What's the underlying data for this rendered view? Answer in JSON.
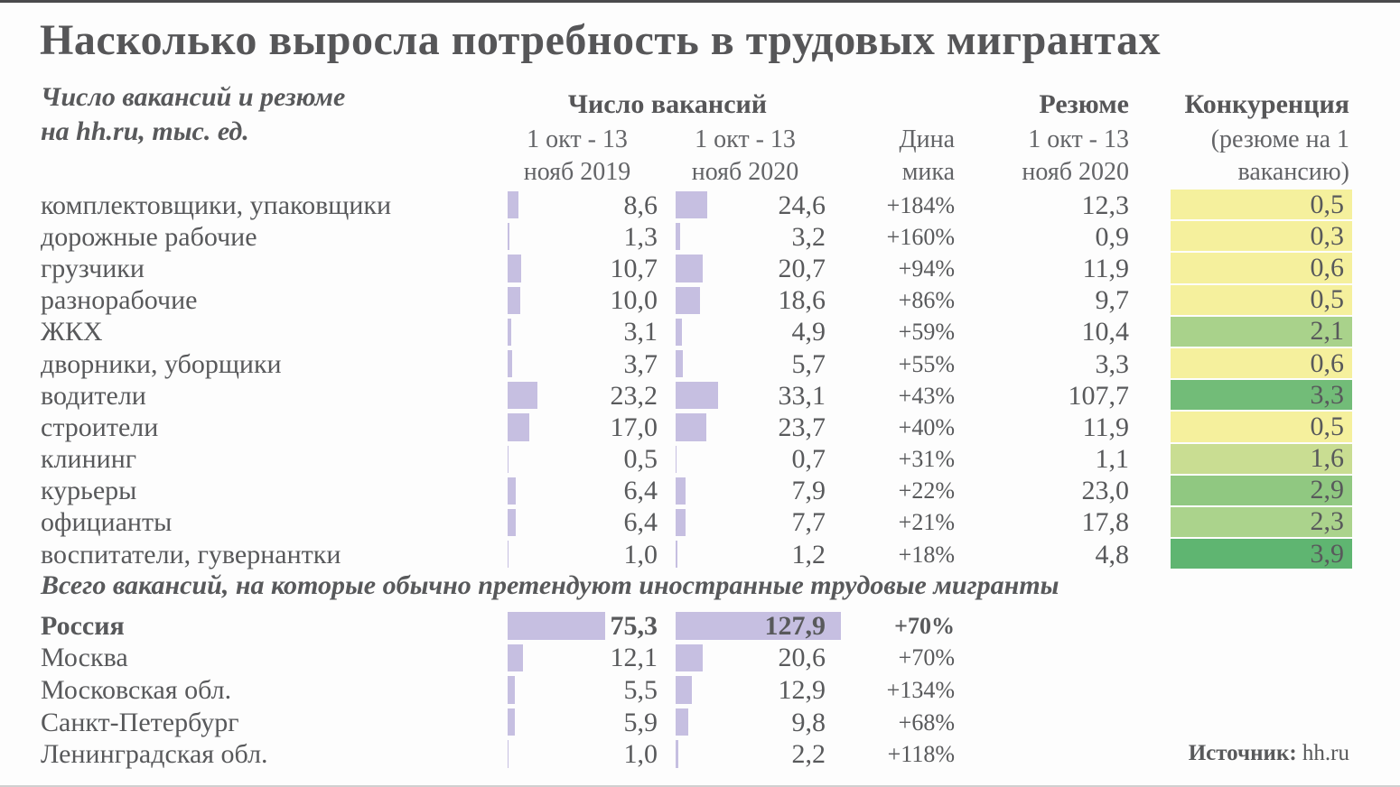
{
  "title": "Насколько выросла потребность в трудовых мигрантах",
  "subtitle": {
    "line1": "Число вакансий и резюме",
    "line2": "на hh.ru, тыс. ед."
  },
  "header": {
    "vacancies_group": "Число вакансий",
    "resume_group": "Резюме",
    "competition_group": "Конкуренция",
    "col_2019_l1": "1 окт - 13",
    "col_2019_l2": "нояб 2019",
    "col_2020_l1": "1 окт - 13",
    "col_2020_l2": "нояб 2020",
    "dynamics_l1": "Дина",
    "dynamics_l2": "мика",
    "resume_col_l1": "1 окт - 13",
    "resume_col_l2": "нояб 2020",
    "competition_sub_l1": "(резюме на 1",
    "competition_sub_l2": "вакансию)"
  },
  "colors": {
    "bar": "#c6bfe1",
    "yellow": "#f5f09d",
    "green_light": "#c9dd92",
    "green_mid": "#a9d28b",
    "green_strong": "#5fb571",
    "text": "#58595b"
  },
  "rows": [
    {
      "label": "комплектовщики, упаковщики",
      "v2019": "8,6",
      "v2020": "24,6",
      "dyn": "+184%",
      "resume": "12,3",
      "comp": "0,5",
      "comp_color": "#f5f09d"
    },
    {
      "label": "дорожные рабочие",
      "v2019": "1,3",
      "v2020": "3,2",
      "dyn": "+160%",
      "resume": "0,9",
      "comp": "0,3",
      "comp_color": "#f5f09d"
    },
    {
      "label": "грузчики",
      "v2019": "10,7",
      "v2020": "20,7",
      "dyn": "+94%",
      "resume": "11,9",
      "comp": "0,6",
      "comp_color": "#f5f09d"
    },
    {
      "label": "разнорабочие",
      "v2019": "10,0",
      "v2020": "18,6",
      "dyn": "+86%",
      "resume": "9,7",
      "comp": "0,5",
      "comp_color": "#f5f09d"
    },
    {
      "label": "ЖКХ",
      "v2019": "3,1",
      "v2020": "4,9",
      "dyn": "+59%",
      "resume": "10,4",
      "comp": "2,1",
      "comp_color": "#a9d28b"
    },
    {
      "label": "дворники, уборщики",
      "v2019": "3,7",
      "v2020": "5,7",
      "dyn": "+55%",
      "resume": "3,3",
      "comp": "0,6",
      "comp_color": "#f5f09d"
    },
    {
      "label": "водители",
      "v2019": "23,2",
      "v2020": "33,1",
      "dyn": "+43%",
      "resume": "107,7",
      "comp": "3,3",
      "comp_color": "#72bc78"
    },
    {
      "label": "строители",
      "v2019": "17,0",
      "v2020": "23,7",
      "dyn": "+40%",
      "resume": "11,9",
      "comp": "0,5",
      "comp_color": "#f5f09d"
    },
    {
      "label": "клининг",
      "v2019": "0,5",
      "v2020": "0,7",
      "dyn": "+31%",
      "resume": "1,1",
      "comp": "1,6",
      "comp_color": "#c9dd92"
    },
    {
      "label": "курьеры",
      "v2019": "6,4",
      "v2020": "7,9",
      "dyn": "+22%",
      "resume": "23,0",
      "comp": "2,9",
      "comp_color": "#90c881"
    },
    {
      "label": "официанты",
      "v2019": "6,4",
      "v2020": "7,7",
      "dyn": "+21%",
      "resume": "17,8",
      "comp": "2,3",
      "comp_color": "#abd38c"
    },
    {
      "label": "воспитатели, гувернантки",
      "v2019": "1,0",
      "v2020": "1,2",
      "dyn": "+18%",
      "resume": "4,8",
      "comp": "3,9",
      "comp_color": "#5fb571"
    }
  ],
  "section_title": "Всего вакансий, на которые обычно претендуют иностранные трудовые мигранты",
  "regions": [
    {
      "label": "Россия",
      "v2019": "75,3",
      "v2020": "127,9",
      "dyn": "+70%",
      "emphasis": true
    },
    {
      "label": "Москва",
      "v2019": "12,1",
      "v2020": "20,6",
      "dyn": "+70%"
    },
    {
      "label": "Московская обл.",
      "v2019": "5,5",
      "v2020": "12,9",
      "dyn": "+134%"
    },
    {
      "label": "Санкт-Петербург",
      "v2019": "5,9",
      "v2020": "9,8",
      "dyn": "+68%"
    },
    {
      "label": "Ленинградская обл.",
      "v2019": "1,0",
      "v2020": "2,2",
      "dyn": "+118%"
    }
  ],
  "source": {
    "label": "Источник:",
    "value": " hh.ru"
  },
  "chart_data": {
    "type": "table",
    "title": "Насколько выросла потребность в трудовых мигрантах",
    "subtitle": "Число вакансий и резюме на hh.ru, тыс. ед.",
    "columns": [
      "Число вакансий 1 окт - 13 нояб 2019",
      "Число вакансий 1 окт - 13 нояб 2020",
      "Динамика",
      "Резюме 1 окт - 13 нояб 2020",
      "Конкуренция (резюме на 1 вакансию)"
    ],
    "occupations": [
      {
        "label": "комплектовщики, упаковщики",
        "vacancies_2019": 8.6,
        "vacancies_2020": 24.6,
        "dynamics_pct": 184,
        "resumes_2020": 12.3,
        "competition": 0.5
      },
      {
        "label": "дорожные рабочие",
        "vacancies_2019": 1.3,
        "vacancies_2020": 3.2,
        "dynamics_pct": 160,
        "resumes_2020": 0.9,
        "competition": 0.3
      },
      {
        "label": "грузчики",
        "vacancies_2019": 10.7,
        "vacancies_2020": 20.7,
        "dynamics_pct": 94,
        "resumes_2020": 11.9,
        "competition": 0.6
      },
      {
        "label": "разнорабочие",
        "vacancies_2019": 10.0,
        "vacancies_2020": 18.6,
        "dynamics_pct": 86,
        "resumes_2020": 9.7,
        "competition": 0.5
      },
      {
        "label": "ЖКХ",
        "vacancies_2019": 3.1,
        "vacancies_2020": 4.9,
        "dynamics_pct": 59,
        "resumes_2020": 10.4,
        "competition": 2.1
      },
      {
        "label": "дворники, уборщики",
        "vacancies_2019": 3.7,
        "vacancies_2020": 5.7,
        "dynamics_pct": 55,
        "resumes_2020": 3.3,
        "competition": 0.6
      },
      {
        "label": "водители",
        "vacancies_2019": 23.2,
        "vacancies_2020": 33.1,
        "dynamics_pct": 43,
        "resumes_2020": 107.7,
        "competition": 3.3
      },
      {
        "label": "строители",
        "vacancies_2019": 17.0,
        "vacancies_2020": 23.7,
        "dynamics_pct": 40,
        "resumes_2020": 11.9,
        "competition": 0.5
      },
      {
        "label": "клининг",
        "vacancies_2019": 0.5,
        "vacancies_2020": 0.7,
        "dynamics_pct": 31,
        "resumes_2020": 1.1,
        "competition": 1.6
      },
      {
        "label": "курьеры",
        "vacancies_2019": 6.4,
        "vacancies_2020": 7.9,
        "dynamics_pct": 22,
        "resumes_2020": 23.0,
        "competition": 2.9
      },
      {
        "label": "официанты",
        "vacancies_2019": 6.4,
        "vacancies_2020": 7.7,
        "dynamics_pct": 21,
        "resumes_2020": 17.8,
        "competition": 2.3
      },
      {
        "label": "воспитатели, гувернантки",
        "vacancies_2019": 1.0,
        "vacancies_2020": 1.2,
        "dynamics_pct": 18,
        "resumes_2020": 4.8,
        "competition": 3.9
      }
    ],
    "totals_note": "Всего вакансий, на которые обычно претендуют иностранные трудовые мигранты",
    "totals": [
      {
        "label": "Россия",
        "vacancies_2019": 75.3,
        "vacancies_2020": 127.9,
        "dynamics_pct": 70
      },
      {
        "label": "Москва",
        "vacancies_2019": 12.1,
        "vacancies_2020": 20.6,
        "dynamics_pct": 70
      },
      {
        "label": "Московская обл.",
        "vacancies_2019": 5.5,
        "vacancies_2020": 12.9,
        "dynamics_pct": 134
      },
      {
        "label": "Санкт-Петербург",
        "vacancies_2019": 5.9,
        "vacancies_2020": 9.8,
        "dynamics_pct": 68
      },
      {
        "label": "Ленинградская обл.",
        "vacancies_2019": 1.0,
        "vacancies_2020": 2.2,
        "dynamics_pct": 118
      }
    ],
    "bar_color": "#c6bfe1",
    "heatmap_scale": {
      "low_color": "#f5f09d",
      "high_color": "#5fb571"
    },
    "source": "hh.ru"
  }
}
